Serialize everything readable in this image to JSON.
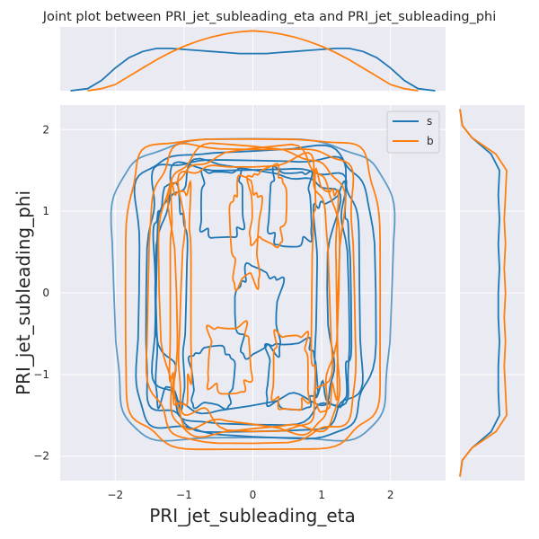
{
  "chart_data": {
    "type": "kde-joint",
    "title": "Joint plot between PRI_jet_subleading_eta and PRI_jet_subleading_phi",
    "xlabel": "PRI_jet_subleading_eta",
    "ylabel": "PRI_jet_subleading_phi",
    "xlim": [
      -2.8,
      2.8
    ],
    "ylim": [
      -2.3,
      2.3
    ],
    "xticks": [
      -2,
      -1,
      0,
      1,
      2
    ],
    "yticks": [
      -2,
      -1,
      0,
      1,
      2
    ],
    "grid": true,
    "legend": {
      "placement": "top-right",
      "entries": [
        "s",
        "b"
      ]
    },
    "colors": {
      "s": "#1f77b4",
      "b": "#ff7f0e",
      "background": "#eaeaf2",
      "grid": "#ffffff"
    },
    "series": [
      {
        "name": "s",
        "marginal_x": {
          "x": [
            -2.65,
            -2.4,
            -2.2,
            -2.0,
            -1.8,
            -1.6,
            -1.4,
            -1.2,
            -1.0,
            -0.8,
            -0.6,
            -0.4,
            -0.2,
            0.0,
            0.2,
            0.4,
            0.6,
            0.8,
            1.0,
            1.2,
            1.4,
            1.6,
            1.8,
            2.0,
            2.2,
            2.4,
            2.65
          ],
          "density": [
            0.0,
            0.01,
            0.05,
            0.11,
            0.16,
            0.19,
            0.205,
            0.205,
            0.2,
            0.195,
            0.19,
            0.185,
            0.18,
            0.18,
            0.18,
            0.185,
            0.19,
            0.195,
            0.2,
            0.205,
            0.205,
            0.19,
            0.16,
            0.11,
            0.05,
            0.01,
            0.0
          ]
        },
        "marginal_y": {
          "y": [
            -2.25,
            -2.05,
            -1.9,
            -1.7,
            -1.5,
            -1.2,
            -0.9,
            -0.6,
            -0.3,
            0.0,
            0.3,
            0.6,
            0.9,
            1.2,
            1.5,
            1.7,
            1.9,
            2.05,
            2.25
          ],
          "density": [
            0.0,
            0.01,
            0.05,
            0.13,
            0.165,
            0.16,
            0.16,
            0.165,
            0.16,
            0.16,
            0.165,
            0.16,
            0.165,
            0.16,
            0.165,
            0.13,
            0.05,
            0.01,
            0.0
          ]
        }
      },
      {
        "name": "b",
        "marginal_x": {
          "x": [
            -2.4,
            -2.2,
            -2.0,
            -1.8,
            -1.6,
            -1.4,
            -1.2,
            -1.0,
            -0.8,
            -0.6,
            -0.4,
            -0.2,
            0.0,
            0.2,
            0.4,
            0.6,
            0.8,
            1.0,
            1.2,
            1.4,
            1.6,
            1.8,
            2.0,
            2.2,
            2.4
          ],
          "density": [
            0.0,
            0.01,
            0.03,
            0.07,
            0.11,
            0.15,
            0.185,
            0.215,
            0.24,
            0.26,
            0.275,
            0.285,
            0.29,
            0.285,
            0.275,
            0.26,
            0.24,
            0.215,
            0.185,
            0.15,
            0.11,
            0.07,
            0.03,
            0.01,
            0.0
          ]
        },
        "marginal_y": {
          "y": [
            -2.25,
            -2.05,
            -1.9,
            -1.7,
            -1.5,
            -1.2,
            -0.9,
            -0.6,
            -0.3,
            0.0,
            0.3,
            0.6,
            0.9,
            1.2,
            1.5,
            1.7,
            1.9,
            2.05,
            2.25
          ],
          "density": [
            0.0,
            0.01,
            0.05,
            0.15,
            0.195,
            0.19,
            0.185,
            0.19,
            0.185,
            0.19,
            0.185,
            0.19,
            0.185,
            0.19,
            0.195,
            0.15,
            0.05,
            0.01,
            0.0
          ]
        }
      }
    ],
    "contours": [
      {
        "series": "s",
        "cx": 0.0,
        "cy": 0.0,
        "rx": 2.02,
        "ry": 1.83,
        "wobble": 0.02
      },
      {
        "series": "s",
        "cx": 0.0,
        "cy": 0.0,
        "rx": 1.72,
        "ry": 1.75,
        "wobble": 0.03
      },
      {
        "series": "s",
        "cx": 0.0,
        "cy": 0.0,
        "rx": 1.55,
        "ry": 1.66,
        "wobble": 0.04
      },
      {
        "series": "s",
        "cx": 0.0,
        "cy": 0.0,
        "rx": 1.4,
        "ry": 1.56,
        "wobble": 0.05
      },
      {
        "series": "s",
        "cx": -0.05,
        "cy": 0.05,
        "rx": 1.25,
        "ry": 1.45,
        "wobble": 0.07
      },
      {
        "series": "s",
        "cx": -1.2,
        "cy": -0.1,
        "rx": 0.22,
        "ry": 1.25,
        "wobble": 0.1
      },
      {
        "series": "s",
        "cx": 1.15,
        "cy": -0.05,
        "rx": 0.25,
        "ry": 1.25,
        "wobble": 0.1
      },
      {
        "series": "s",
        "cx": -0.45,
        "cy": 1.1,
        "rx": 0.3,
        "ry": 0.4,
        "wobble": 0.1
      },
      {
        "series": "s",
        "cx": 0.55,
        "cy": 1.05,
        "rx": 0.3,
        "ry": 0.45,
        "wobble": 0.1
      },
      {
        "series": "s",
        "cx": 0.1,
        "cy": -0.25,
        "rx": 0.3,
        "ry": 0.5,
        "wobble": 0.15
      },
      {
        "series": "s",
        "cx": -0.6,
        "cy": -1.05,
        "rx": 0.3,
        "ry": 0.35,
        "wobble": 0.1
      },
      {
        "series": "s",
        "cx": 0.55,
        "cy": -1.0,
        "rx": 0.35,
        "ry": 0.4,
        "wobble": 0.1
      },
      {
        "series": "b",
        "cx": 0.0,
        "cy": 0.0,
        "rx": 1.85,
        "ry": 1.9,
        "wobble": 0.02
      },
      {
        "series": "b",
        "cx": 0.0,
        "cy": 0.0,
        "rx": 1.5,
        "ry": 1.8,
        "wobble": 0.03
      },
      {
        "series": "b",
        "cx": 0.0,
        "cy": 0.0,
        "rx": 1.3,
        "ry": 1.73,
        "wobble": 0.04
      },
      {
        "series": "b",
        "cx": 0.0,
        "cy": 0.0,
        "rx": 1.18,
        "ry": 1.69,
        "wobble": 0.05
      },
      {
        "series": "b",
        "cx": 0.0,
        "cy": 0.0,
        "rx": 1.08,
        "ry": 1.62,
        "wobble": 0.06
      },
      {
        "series": "b",
        "cx": -1.05,
        "cy": 0.0,
        "rx": 0.15,
        "ry": 1.3,
        "wobble": 0.1
      },
      {
        "series": "b",
        "cx": 1.05,
        "cy": 0.0,
        "rx": 0.18,
        "ry": 1.35,
        "wobble": 0.1
      },
      {
        "series": "b",
        "cx": -0.1,
        "cy": 0.7,
        "rx": 0.2,
        "ry": 0.6,
        "wobble": 0.15
      },
      {
        "series": "b",
        "cx": 0.2,
        "cy": 1.05,
        "rx": 0.25,
        "ry": 0.45,
        "wobble": 0.12
      },
      {
        "series": "b",
        "cx": -0.35,
        "cy": -0.8,
        "rx": 0.3,
        "ry": 0.4,
        "wobble": 0.12
      },
      {
        "series": "b",
        "cx": 0.55,
        "cy": -0.95,
        "rx": 0.25,
        "ry": 0.45,
        "wobble": 0.12
      }
    ]
  }
}
